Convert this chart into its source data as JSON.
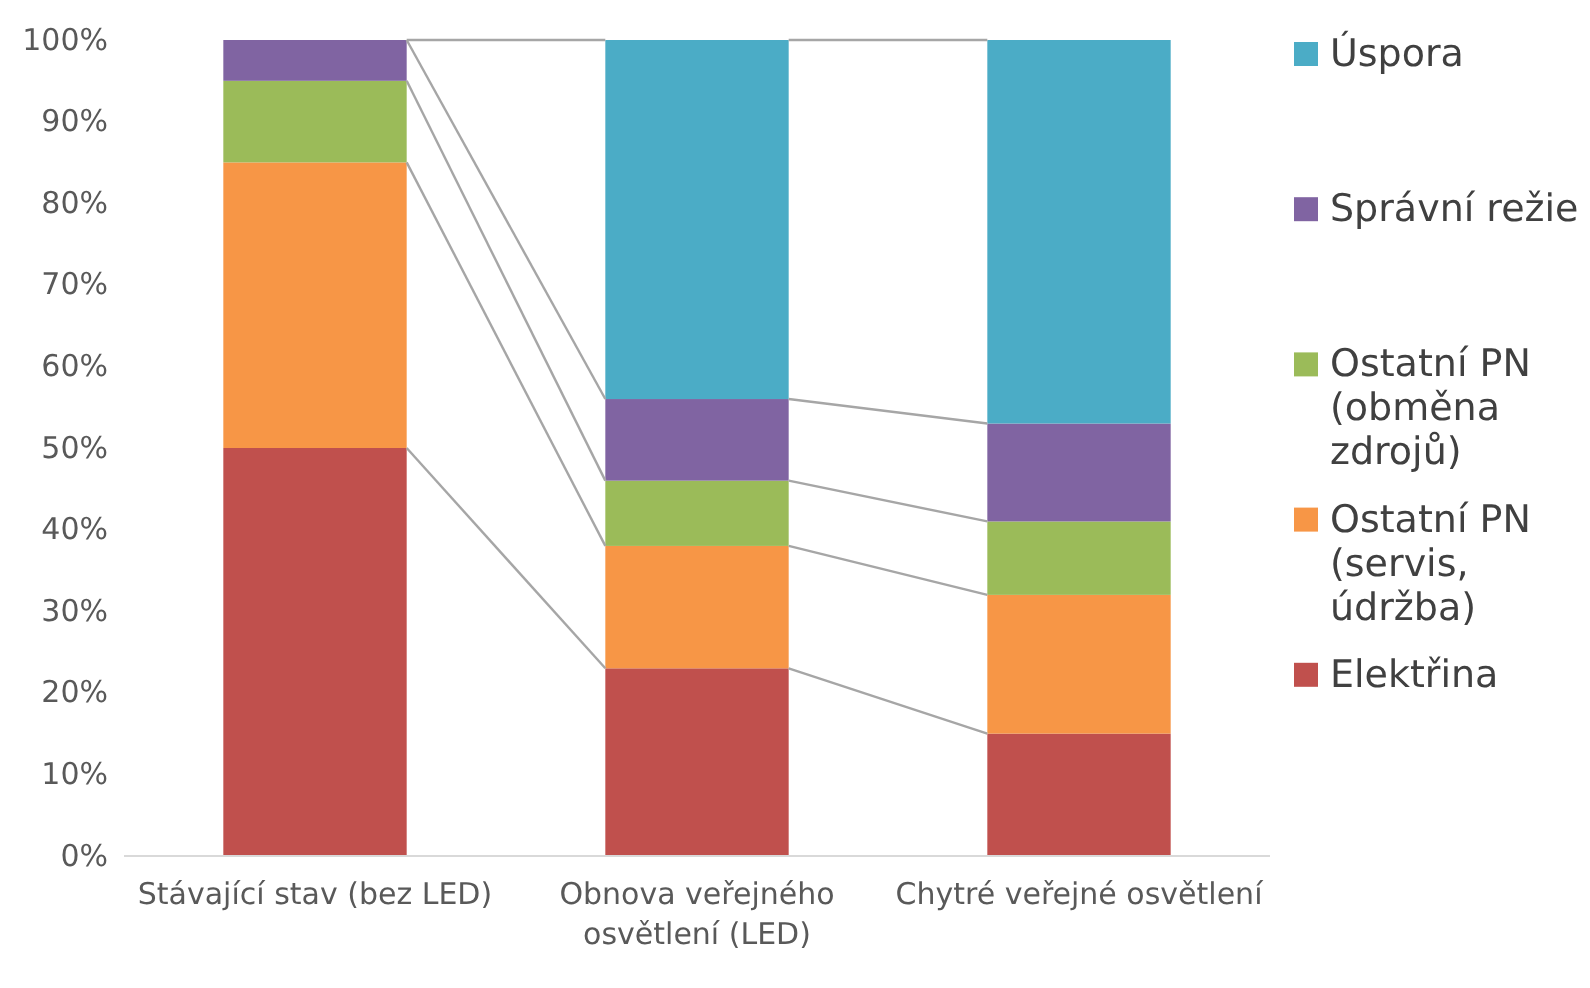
{
  "chart_data": {
    "type": "bar",
    "stacked": true,
    "categories": [
      "Stávající stav (bez LED)",
      "Obnova veřejného osvětlení (LED)",
      "Chytré veřejné osvětlení"
    ],
    "series": [
      {
        "name": "Elektřina",
        "color": "#c0504d",
        "values": [
          50,
          23,
          15
        ]
      },
      {
        "name": "Ostatní PN (servis, údržba)",
        "color": "#f79646",
        "values": [
          35,
          15,
          17
        ]
      },
      {
        "name": "Ostatní PN (obměna zdrojů)",
        "color": "#9bbb59",
        "values": [
          10,
          8,
          9
        ]
      },
      {
        "name": "Správní režie",
        "color": "#8064a2",
        "values": [
          5,
          10,
          12
        ]
      },
      {
        "name": "Úspora",
        "color": "#4bacc6",
        "values": [
          0,
          44,
          47
        ]
      }
    ],
    "ylim": [
      0,
      100
    ],
    "yticks": [
      {
        "value": 0,
        "label": "0%"
      },
      {
        "value": 10,
        "label": "10%"
      },
      {
        "value": 20,
        "label": "20%"
      },
      {
        "value": 30,
        "label": "30%"
      },
      {
        "value": 40,
        "label": "40%"
      },
      {
        "value": 50,
        "label": "50%"
      },
      {
        "value": 60,
        "label": "60%"
      },
      {
        "value": 70,
        "label": "70%"
      },
      {
        "value": 80,
        "label": "80%"
      },
      {
        "value": 90,
        "label": "90%"
      },
      {
        "value": 100,
        "label": "100%"
      }
    ],
    "grid": false,
    "legend": "right"
  }
}
